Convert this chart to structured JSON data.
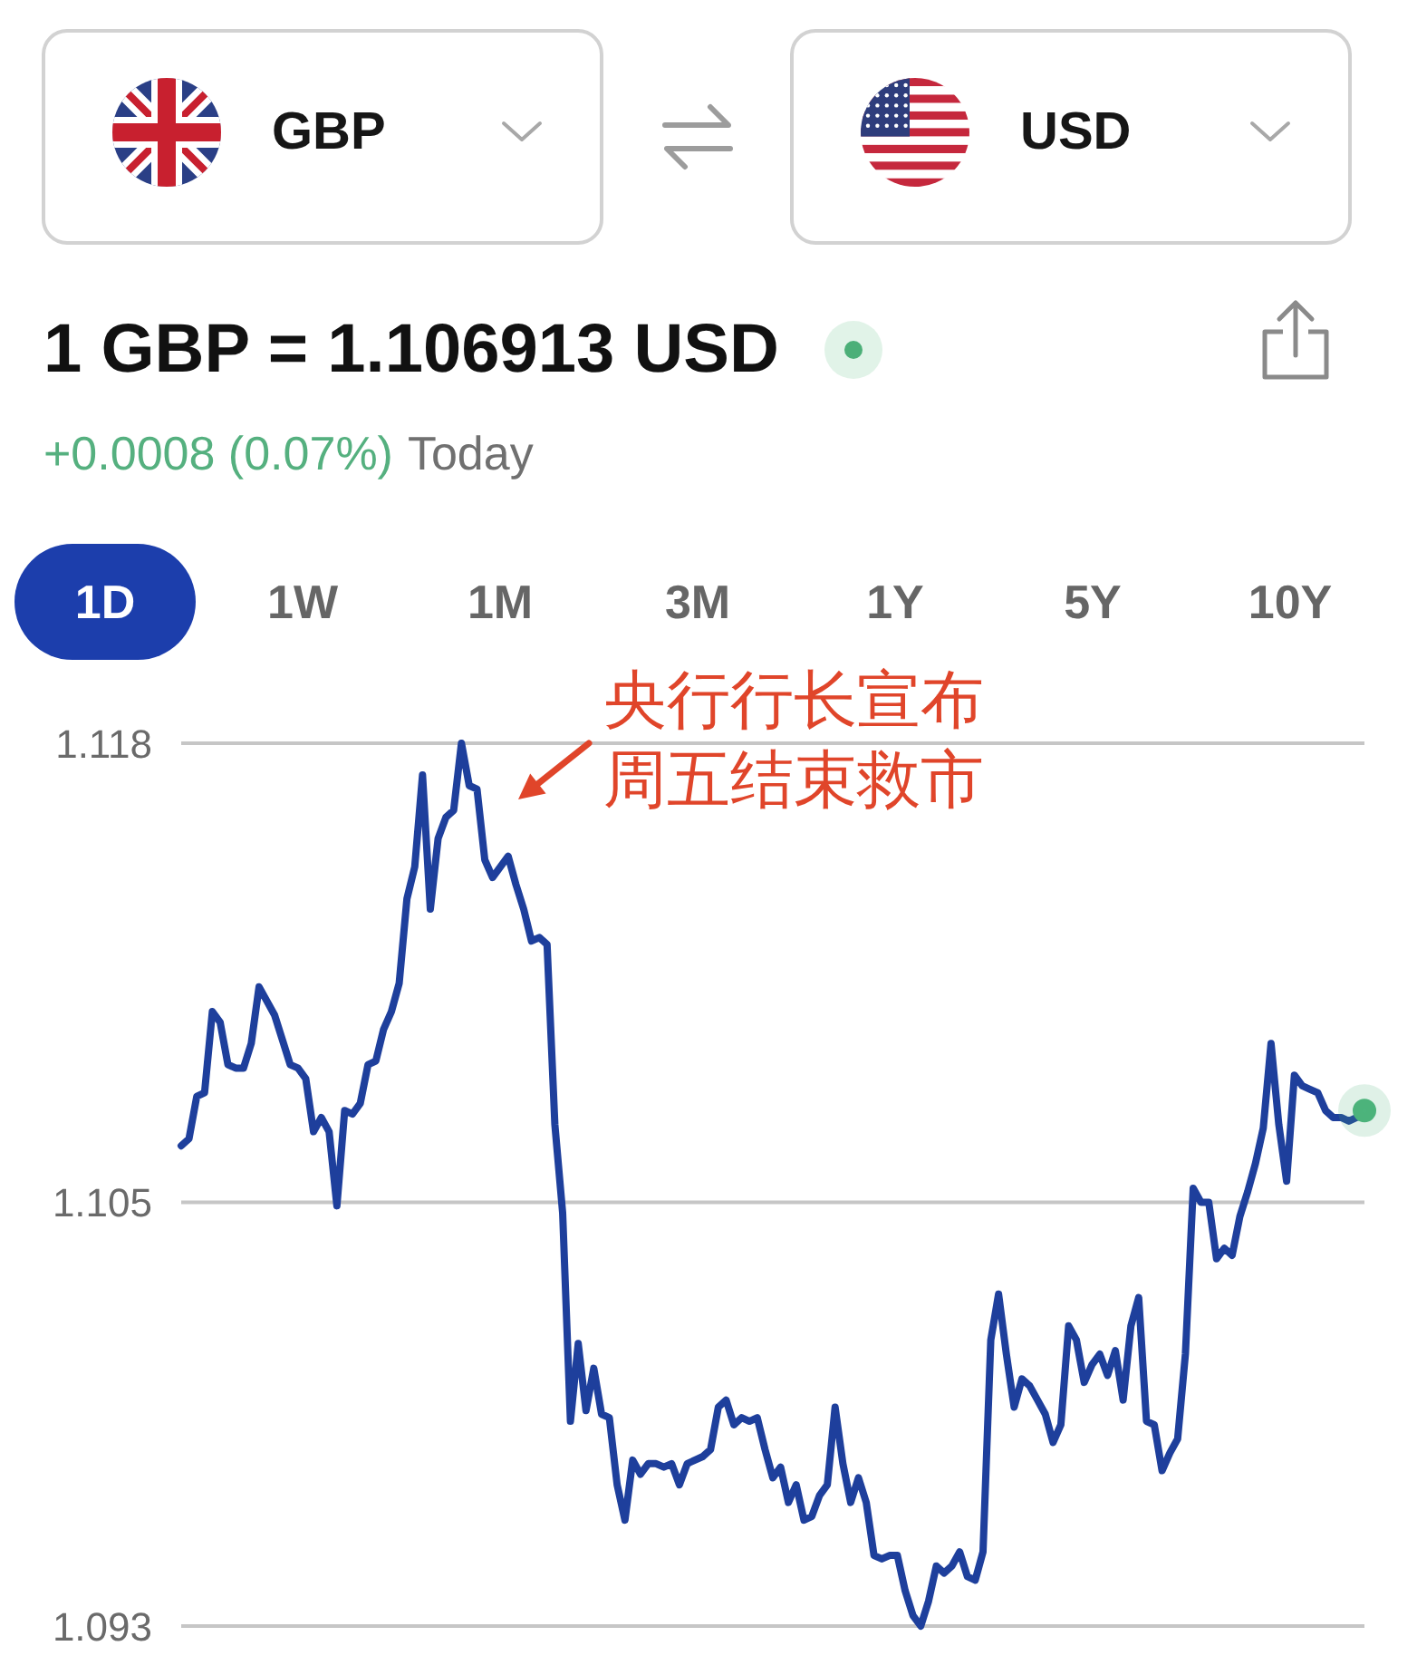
{
  "chart_data": {
    "type": "line",
    "title": "1 GBP = 1.106913 USD",
    "subtitle": "+0.0008 (0.07%)",
    "annotations": [
      "GBP",
      "USD",
      "Today",
      "1D",
      "1W",
      "1M",
      "3M",
      "1Y",
      "5Y",
      "10Y",
      "央行行长宣布周五结束救市"
    ],
    "categories": [
      null,
      null,
      null,
      null,
      null,
      null,
      null,
      null,
      null,
      null,
      null,
      null,
      null,
      null,
      null,
      null,
      null,
      null,
      null,
      null,
      null,
      null,
      null,
      null,
      null,
      null,
      null,
      null,
      null,
      null,
      null,
      null,
      null,
      null,
      null,
      null,
      null,
      null,
      null,
      null,
      null,
      null,
      null,
      null,
      null,
      null,
      null,
      null,
      null,
      null,
      null,
      null,
      null,
      null,
      null,
      null,
      null,
      null,
      null,
      null,
      null,
      null,
      null,
      null,
      null,
      null,
      null,
      null,
      null,
      null,
      null,
      null,
      null,
      null,
      null,
      null,
      null,
      null,
      null,
      null,
      null,
      null,
      null,
      null,
      null,
      null,
      null,
      null,
      null,
      null,
      null,
      null,
      null,
      null,
      null,
      null,
      null,
      null,
      null,
      null,
      null,
      null,
      null,
      null,
      null,
      null,
      null,
      null,
      null,
      null,
      null,
      null,
      null,
      null,
      null,
      null,
      null,
      null,
      null,
      null,
      null,
      null,
      null,
      null,
      null,
      null,
      null,
      null,
      null,
      null,
      null,
      null,
      null,
      null,
      null,
      null,
      null,
      null,
      null,
      null,
      null,
      null,
      null,
      null,
      null,
      null,
      null,
      null,
      null,
      null,
      null,
      null,
      null
    ],
    "series": [
      {
        "color": "#1e3f9c",
        "values": [
          1.1066,
          1.1068,
          1.108,
          1.1081,
          1.1104,
          1.1101,
          1.1089,
          1.1088,
          1.1088,
          1.1095,
          1.1111,
          1.1107,
          1.1103,
          1.1096,
          1.1089,
          1.1088,
          1.1085,
          1.107,
          1.1074,
          1.107,
          1.1049,
          1.1076,
          1.1075,
          1.1078,
          1.1089,
          1.109,
          1.1099,
          1.1104,
          1.1112,
          1.1136,
          1.1145,
          1.1171,
          1.1133,
          1.1153,
          1.1159,
          1.1161,
          1.118,
          1.1168,
          1.1167,
          1.1147,
          1.1142,
          1.1145,
          1.1148,
          1.114,
          1.1133,
          1.1124,
          1.1125,
          1.1123,
          1.1072,
          1.1047,
          1.0988,
          1.101,
          1.0991,
          1.1003,
          1.099,
          1.0989,
          1.097,
          1.096,
          1.0977,
          1.0973,
          1.0976,
          1.0976,
          1.0975,
          1.0976,
          1.097,
          1.0976,
          1.0977,
          1.0978,
          1.098,
          1.0992,
          1.0994,
          1.0987,
          1.0989,
          1.0988,
          1.0989,
          1.098,
          1.0972,
          1.0975,
          1.0965,
          1.097,
          1.096,
          1.0961,
          1.0967,
          1.097,
          1.0992,
          1.0976,
          1.0965,
          1.0972,
          1.0965,
          1.095,
          1.0949,
          1.095,
          1.095,
          1.094,
          1.0933,
          1.093,
          1.0937,
          1.0947,
          1.0945,
          1.0947,
          1.0951,
          1.0944,
          1.0943,
          1.0951,
          1.1011,
          1.1024,
          1.1007,
          1.0992,
          1.1,
          1.0998,
          1.0994,
          1.099,
          1.0982,
          1.0987,
          1.1015,
          1.1011,
          1.0999,
          1.1004,
          1.1007,
          1.1001,
          1.1008,
          1.0994,
          1.1015,
          1.1023,
          1.0988,
          1.0987,
          1.0974,
          1.0979,
          1.0983,
          1.1007,
          1.1054,
          1.105,
          1.105,
          1.1034,
          1.1037,
          1.1035,
          1.1046,
          1.1053,
          1.1061,
          1.1071,
          1.1095,
          1.1072,
          1.1056,
          1.1086,
          1.1083,
          1.1082,
          1.1081,
          1.1076,
          1.1074,
          1.1074,
          1.1073,
          1.1074,
          1.1076
        ]
      },
      {
        "type": "scatter",
        "color": "#4cb47c",
        "values": [
          null,
          null,
          null,
          null,
          null,
          null,
          null,
          null,
          null,
          null,
          null,
          null,
          null,
          null,
          null,
          null,
          null,
          null,
          null,
          null,
          null,
          null,
          null,
          null,
          null,
          null,
          null,
          null,
          null,
          null,
          null,
          null,
          null,
          null,
          null,
          null,
          null,
          null,
          null,
          null,
          null,
          null,
          null,
          null,
          null,
          null,
          null,
          null,
          null,
          null,
          null,
          null,
          null,
          null,
          null,
          null,
          null,
          null,
          null,
          null,
          null,
          null,
          null,
          null,
          null,
          null,
          null,
          null,
          null,
          null,
          null,
          null,
          null,
          null,
          null,
          null,
          null,
          null,
          null,
          null,
          null,
          null,
          null,
          null,
          null,
          null,
          null,
          null,
          null,
          null,
          null,
          null,
          null,
          null,
          null,
          null,
          null,
          null,
          null,
          null,
          null,
          null,
          null,
          null,
          null,
          null,
          null,
          null,
          null,
          null,
          null,
          null,
          null,
          null,
          null,
          null,
          null,
          null,
          null,
          null,
          null,
          null,
          null,
          null,
          null,
          null,
          null,
          null,
          null,
          null,
          null,
          null,
          null,
          null,
          null,
          null,
          null,
          null,
          null,
          null,
          null,
          null,
          null,
          null,
          null,
          null,
          null,
          null,
          null,
          null,
          null,
          null,
          1.1076
        ]
      }
    ],
    "ylim": [
      1.093,
      1.118
    ],
    "yticks": [
      1.093,
      1.105,
      1.118
    ],
    "grid": "y",
    "tick_labels": "y"
  }
}
